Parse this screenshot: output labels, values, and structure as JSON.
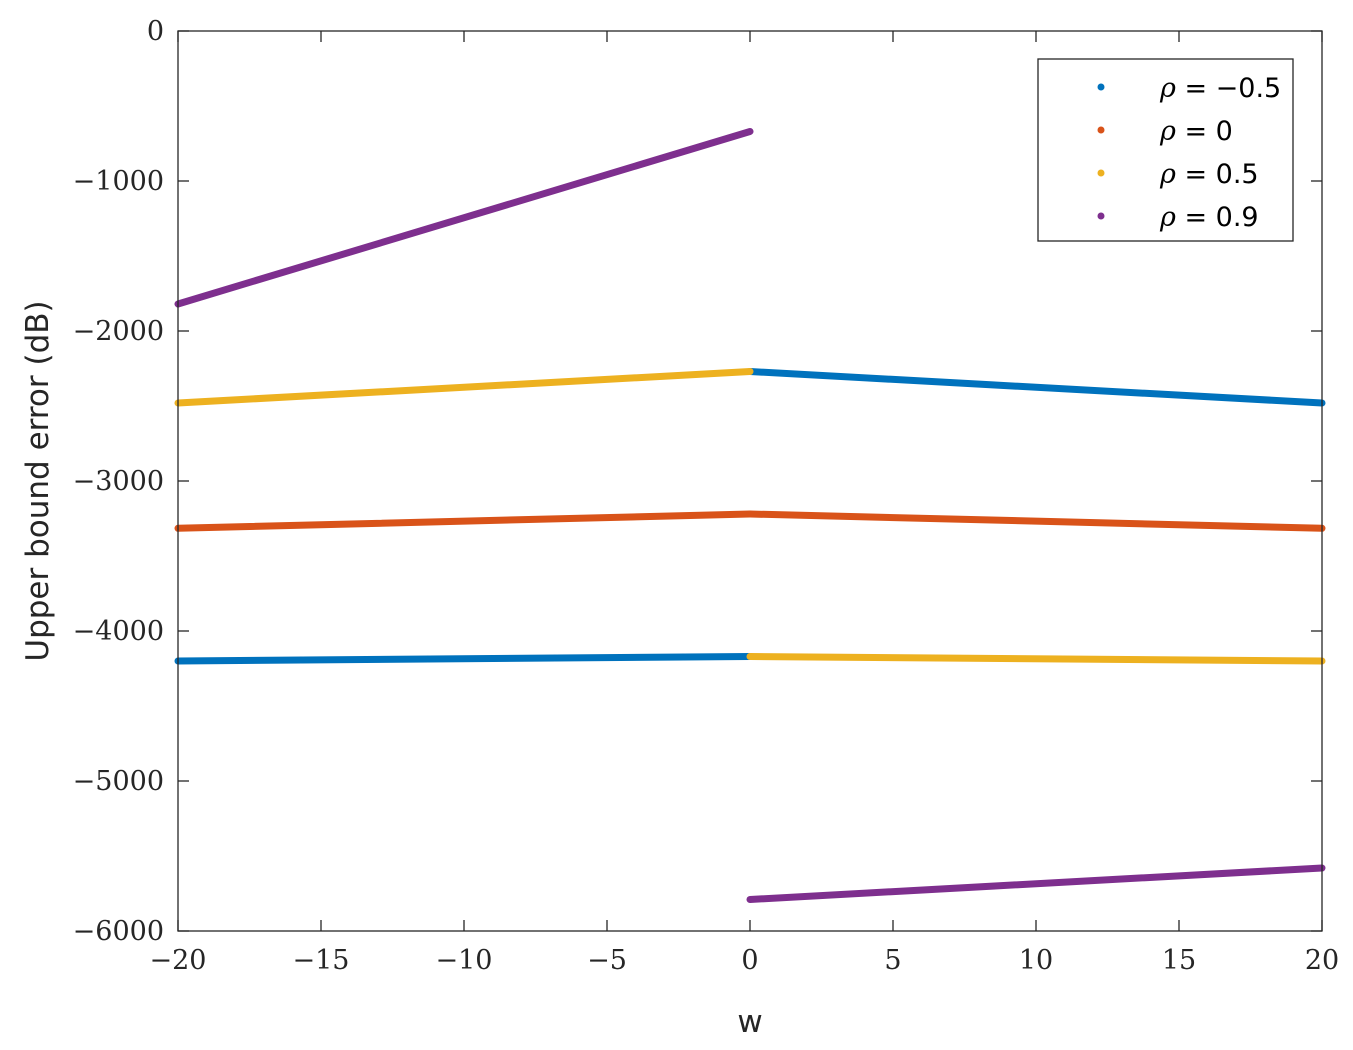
{
  "chart_data": {
    "type": "line",
    "xlabel": "w",
    "ylabel": "Upper bound error (dB)",
    "xlim": [
      -20,
      20
    ],
    "ylim": [
      -6000,
      0
    ],
    "x_ticks": [
      -20,
      -15,
      -10,
      -5,
      0,
      5,
      10,
      15,
      20
    ],
    "y_ticks": [
      0,
      -1000,
      -2000,
      -3000,
      -4000,
      -5000,
      -6000
    ],
    "x_tick_labels": [
      "−20",
      "−15",
      "−10",
      "−5",
      "0",
      "5",
      "10",
      "15",
      "20"
    ],
    "y_tick_labels": [
      "0",
      "−1000",
      "−2000",
      "−3000",
      "−4000",
      "−5000",
      "−6000"
    ],
    "grid": false,
    "legend_position": "top-right",
    "series": [
      {
        "name_symbol": "ρ",
        "name_value": " = −0.5",
        "color": "#0072BD",
        "segments": [
          {
            "x": [
              -20,
              0
            ],
            "y": [
              -4200,
              -4170
            ]
          },
          {
            "x": [
              0,
              20
            ],
            "y": [
              -2270,
              -2480
            ]
          }
        ]
      },
      {
        "name_symbol": "ρ",
        "name_value": " = 0",
        "color": "#D95319",
        "segments": [
          {
            "x": [
              -20,
              0
            ],
            "y": [
              -3315,
              -3220
            ]
          },
          {
            "x": [
              0,
              20
            ],
            "y": [
              -3220,
              -3315
            ]
          }
        ]
      },
      {
        "name_symbol": "ρ",
        "name_value": " = 0.5",
        "color": "#EDB120",
        "segments": [
          {
            "x": [
              -20,
              0
            ],
            "y": [
              -2480,
              -2270
            ]
          },
          {
            "x": [
              0,
              20
            ],
            "y": [
              -4170,
              -4200
            ]
          }
        ]
      },
      {
        "name_symbol": "ρ",
        "name_value": " = 0.9",
        "color": "#7E2F8E",
        "segments": [
          {
            "x": [
              -20,
              0
            ],
            "y": [
              -1820,
              -670
            ]
          },
          {
            "x": [
              0,
              20
            ],
            "y": [
              -5790,
              -5580
            ]
          }
        ]
      }
    ]
  }
}
